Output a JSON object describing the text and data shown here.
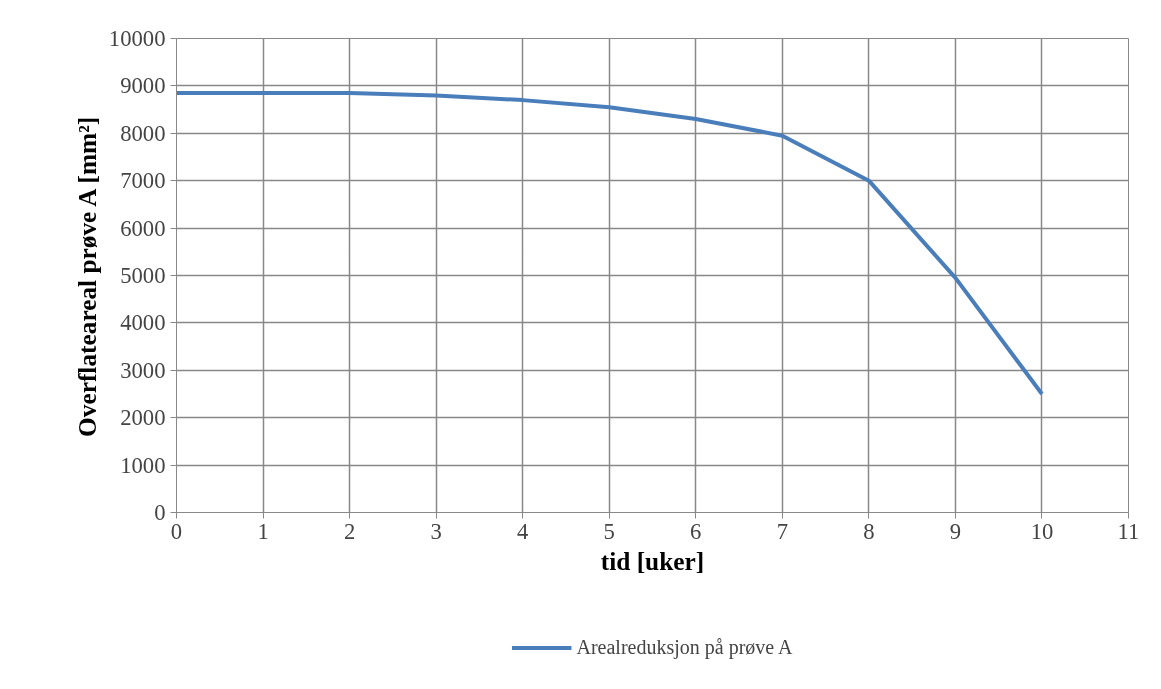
{
  "chart_data": {
    "type": "line",
    "xlabel": "tid [uker]",
    "ylabel": "Overflateareal prøve A [mm²]",
    "x": [
      0,
      1,
      2,
      3,
      4,
      5,
      6,
      7,
      8,
      9,
      10
    ],
    "series": [
      {
        "name": "Arealreduksjon på prøve A",
        "color": "#4a7ebb",
        "values": [
          8850,
          8850,
          8850,
          8800,
          8700,
          8550,
          8300,
          7950,
          7000,
          4950,
          2500
        ]
      }
    ],
    "xlim": [
      0,
      11
    ],
    "xticks": [
      0,
      1,
      2,
      3,
      4,
      5,
      6,
      7,
      8,
      9,
      10,
      11
    ],
    "ylim": [
      0,
      10000
    ],
    "yticks": [
      0,
      1000,
      2000,
      3000,
      4000,
      5000,
      6000,
      7000,
      8000,
      9000,
      10000
    ],
    "grid": true,
    "legend": "bottom",
    "marker": "none",
    "line_style": "solid"
  }
}
